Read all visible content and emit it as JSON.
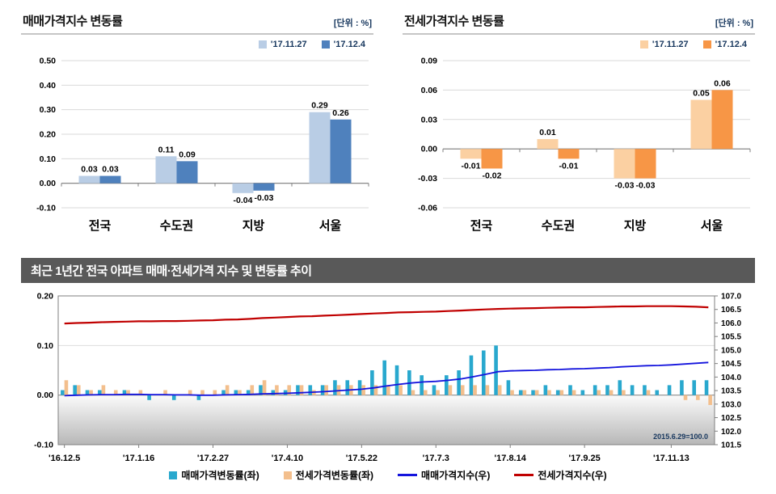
{
  "chart_data": [
    {
      "id": "sale_price_change_bar",
      "type": "bar",
      "title": "매매가격지수 변동률",
      "unit_label": "[단위 : %]",
      "categories": [
        "전국",
        "수도권",
        "지방",
        "서울"
      ],
      "series": [
        {
          "name": "'17.11.27",
          "color": "#b9cde5",
          "values": [
            0.03,
            0.11,
            -0.04,
            0.29
          ]
        },
        {
          "name": "'17.12.4",
          "color": "#4f81bd",
          "values": [
            0.03,
            0.09,
            -0.03,
            0.26
          ]
        }
      ],
      "ylim": [
        -0.1,
        0.5
      ],
      "ytick_step": 0.1,
      "grid": true,
      "legend_position": "top-right",
      "value_labels": true
    },
    {
      "id": "jeonse_price_change_bar",
      "type": "bar",
      "title": "전세가격지수 변동률",
      "unit_label": "[단위 : %]",
      "categories": [
        "전국",
        "수도권",
        "지방",
        "서울"
      ],
      "series": [
        {
          "name": "'17.11.27",
          "color": "#fbd0a2",
          "values": [
            -0.01,
            0.01,
            -0.03,
            0.05
          ]
        },
        {
          "name": "'17.12.4",
          "color": "#f79646",
          "values": [
            -0.02,
            -0.01,
            -0.03,
            0.06
          ]
        }
      ],
      "ylim": [
        -0.06,
        0.09
      ],
      "ytick_step": 0.03,
      "grid": true,
      "legend_position": "top-right",
      "value_labels": true
    },
    {
      "id": "yearly_trend_combo",
      "type": "combo",
      "title": "최근 1년간 전국 아파트 매매·전세가격 지수 및 변동률 추이",
      "annotation": "2015.6.29=100.0",
      "left_ylim": [
        -0.1,
        0.2
      ],
      "left_ytick_step": 0.1,
      "right_ylim": [
        101.5,
        107.0
      ],
      "right_ytick_step": 0.5,
      "x_labels": [
        {
          "i": 0,
          "label": "'16.12.5"
        },
        {
          "i": 6,
          "label": "'17.1.16"
        },
        {
          "i": 12,
          "label": "'17.2.27"
        },
        {
          "i": 18,
          "label": "'17.4.10"
        },
        {
          "i": 24,
          "label": "'17.5.22"
        },
        {
          "i": 30,
          "label": "'17.7.3"
        },
        {
          "i": 36,
          "label": "'17.8.14"
        },
        {
          "i": 42,
          "label": "'17.9.25"
        },
        {
          "i": 49,
          "label": "'17.11.13"
        }
      ],
      "bar_series": [
        {
          "name": "매매가격변동률(좌)",
          "axis": "left",
          "color": "#29a8ce",
          "values": [
            0.01,
            0.02,
            0.01,
            0.01,
            0.0,
            0.01,
            0.0,
            -0.01,
            0.0,
            -0.01,
            0.0,
            -0.01,
            0.0,
            0.01,
            0.01,
            0.01,
            0.02,
            0.01,
            0.01,
            0.02,
            0.02,
            0.02,
            0.03,
            0.03,
            0.03,
            0.05,
            0.07,
            0.06,
            0.05,
            0.04,
            0.02,
            0.04,
            0.05,
            0.08,
            0.09,
            0.1,
            0.03,
            0.01,
            0.01,
            0.02,
            0.01,
            0.02,
            0.01,
            0.02,
            0.02,
            0.03,
            0.02,
            0.02,
            0.01,
            0.02,
            0.03,
            0.03,
            0.03
          ]
        },
        {
          "name": "전세가격변동률(좌)",
          "axis": "left",
          "color": "#f3bf8d",
          "values": [
            0.03,
            0.02,
            0.01,
            0.02,
            0.01,
            0.01,
            0.01,
            0.0,
            0.01,
            0.0,
            0.01,
            0.01,
            0.01,
            0.02,
            0.01,
            0.02,
            0.03,
            0.02,
            0.02,
            0.02,
            0.01,
            0.02,
            0.02,
            0.02,
            0.02,
            0.02,
            0.02,
            0.02,
            0.01,
            0.01,
            0.01,
            0.02,
            0.02,
            0.02,
            0.02,
            0.02,
            0.01,
            0.01,
            0.01,
            0.01,
            0.01,
            0.01,
            0.0,
            0.01,
            0.01,
            0.01,
            0.0,
            0.01,
            0.0,
            0.0,
            -0.01,
            -0.01,
            -0.02
          ]
        }
      ],
      "line_series": [
        {
          "name": "매매가격지수(우)",
          "axis": "right",
          "color": "#1414dd",
          "values": [
            103.31,
            103.33,
            103.34,
            103.35,
            103.35,
            103.36,
            103.36,
            103.35,
            103.35,
            103.34,
            103.34,
            103.33,
            103.33,
            103.34,
            103.35,
            103.36,
            103.38,
            103.39,
            103.4,
            103.42,
            103.44,
            103.46,
            103.49,
            103.52,
            103.55,
            103.6,
            103.67,
            103.73,
            103.78,
            103.82,
            103.84,
            103.88,
            103.93,
            104.01,
            104.1,
            104.2,
            104.23,
            104.24,
            104.25,
            104.27,
            104.28,
            104.3,
            104.31,
            104.33,
            104.35,
            104.38,
            104.4,
            104.42,
            104.43,
            104.45,
            104.48,
            104.51,
            104.54
          ]
        },
        {
          "name": "전세가격지수(우)",
          "axis": "right",
          "color": "#c00000",
          "values": [
            105.98,
            106.0,
            106.01,
            106.03,
            106.04,
            106.05,
            106.06,
            106.06,
            106.07,
            106.07,
            106.08,
            106.09,
            106.1,
            106.12,
            106.13,
            106.15,
            106.18,
            106.2,
            106.22,
            106.24,
            106.25,
            106.27,
            106.29,
            106.31,
            106.33,
            106.35,
            106.37,
            106.39,
            106.4,
            106.41,
            106.42,
            106.44,
            106.46,
            106.48,
            106.5,
            106.52,
            106.53,
            106.54,
            106.55,
            106.56,
            106.57,
            106.58,
            106.58,
            106.59,
            106.6,
            106.61,
            106.61,
            106.62,
            106.62,
            106.62,
            106.61,
            106.6,
            106.58
          ]
        }
      ],
      "grid": true,
      "legend_position": "bottom"
    }
  ]
}
